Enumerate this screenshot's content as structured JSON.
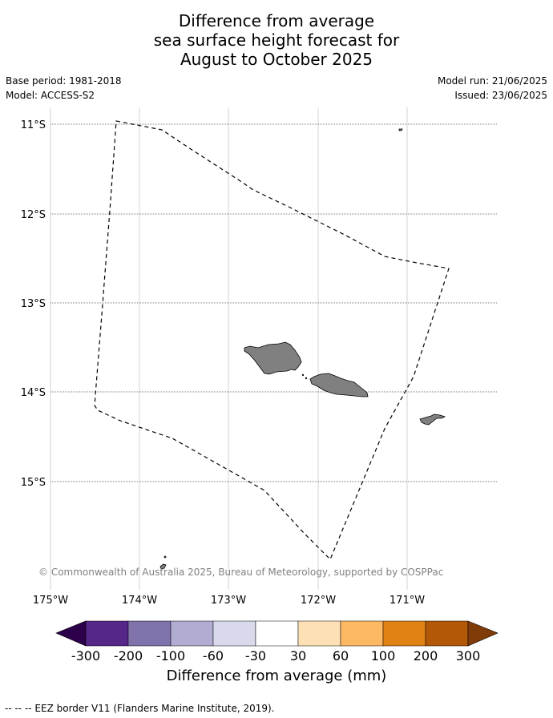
{
  "title": {
    "line1": "Difference from average",
    "line2": "sea surface height forecast for",
    "line3": "August to October 2025"
  },
  "meta": {
    "base_period": "Base period: 1981-2018",
    "model": "Model: ACCESS-S2",
    "model_run": "Model run: 21/06/2025",
    "issued": "Issued: 23/06/2025"
  },
  "map": {
    "lat_labels": [
      "11°S",
      "12°S",
      "13°S",
      "14°S",
      "15°S"
    ],
    "lon_labels": [
      "175°W",
      "174°W",
      "173°W",
      "172°W",
      "171°W"
    ],
    "land_color": "#808080",
    "copyright": "© Commonwealth of Australia 2025, Bureau of Meteorology, supported by COSPPac"
  },
  "colorbar": {
    "labels": [
      "-300",
      "-200",
      "-100",
      "-60",
      "-30",
      "30",
      "60",
      "100",
      "200",
      "300"
    ],
    "colors": [
      "#2d004b",
      "#542788",
      "#8073ac",
      "#b2abd2",
      "#d8daeb",
      "#ffffff",
      "#fee0b6",
      "#fdb863",
      "#e08214",
      "#b35806",
      "#7f3b08"
    ],
    "title": "Difference from average (mm)"
  },
  "footnote": "--  --  -- EEZ border V11 (Flanders Marine Institute, 2019)."
}
